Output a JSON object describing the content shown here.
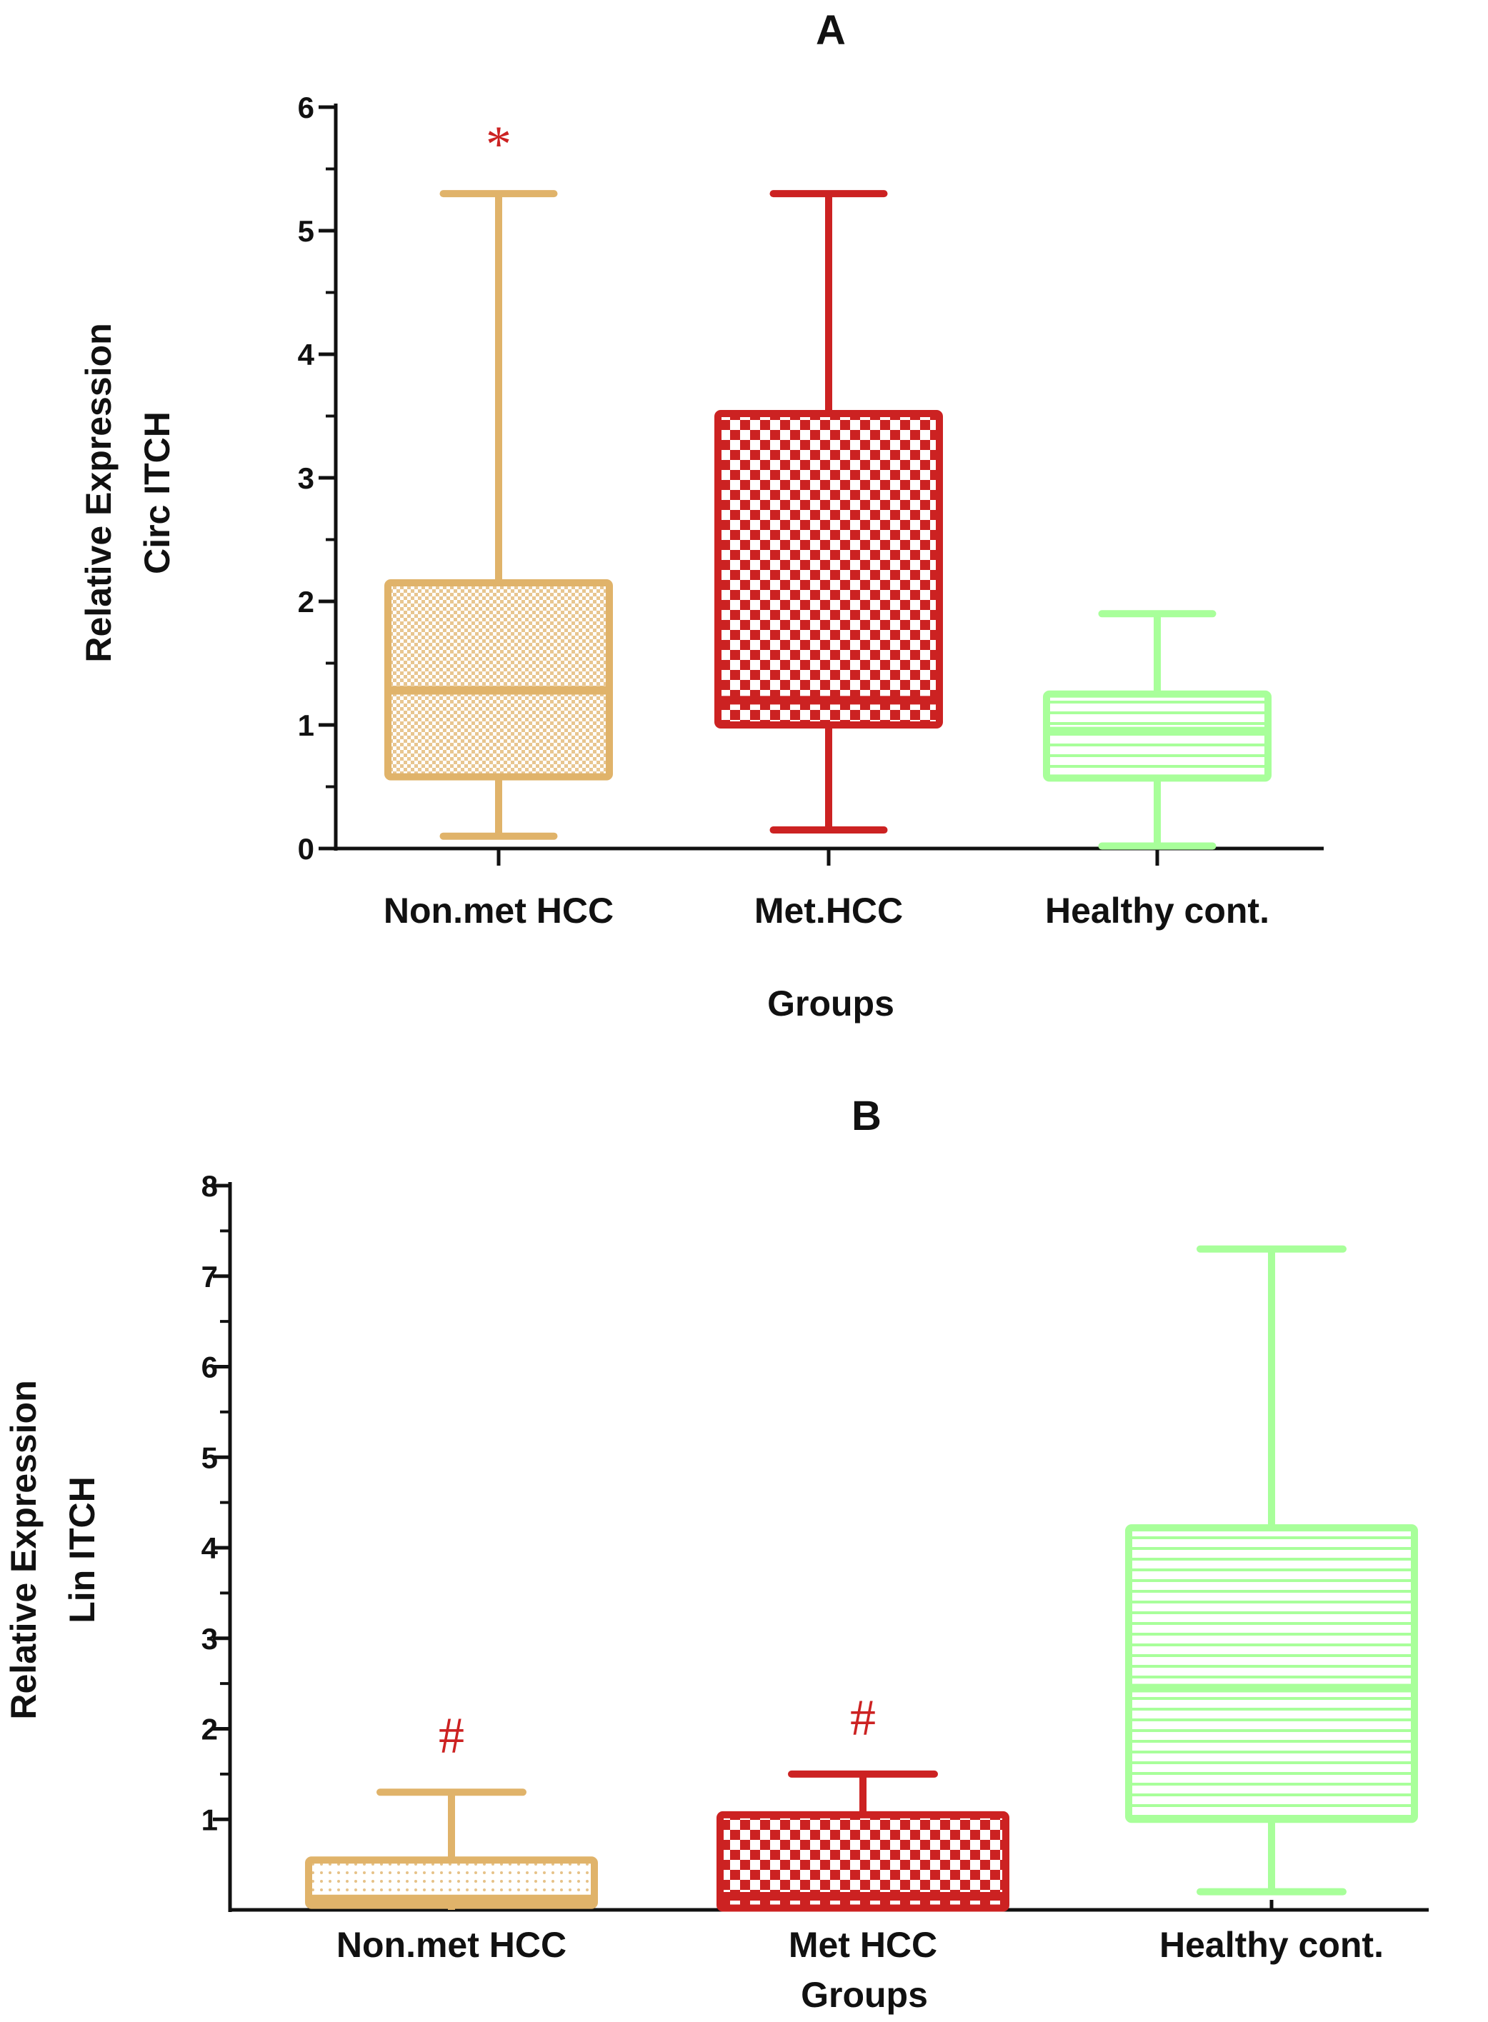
{
  "colors": {
    "non_met": "#E0B36A",
    "met": "#CC2222",
    "healthy": "#A8FF9A",
    "axis": "#111111",
    "significance": "#CC2222"
  },
  "chart_data": [
    {
      "type": "box",
      "panel": "A",
      "title": "A",
      "xlabel": "Groups",
      "ylabel_lines": [
        "Relative Expression",
        "Circ ITCH"
      ],
      "ylim": [
        0,
        6
      ],
      "yticks": [
        "0",
        "1",
        "2",
        "3",
        "4",
        "5",
        "6"
      ],
      "categories": [
        "Non.met HCC",
        "Met.HCC",
        "Healthy cont."
      ],
      "boxes": [
        {
          "category": "Non.met HCC",
          "color": "#E0B36A",
          "pattern": "fine-check",
          "min": 0.1,
          "q1": 0.58,
          "median": 1.28,
          "q3": 2.15,
          "max": 5.3,
          "annotation": "*"
        },
        {
          "category": "Met.HCC",
          "color": "#CC2222",
          "pattern": "checker",
          "min": 0.15,
          "q1": 1.0,
          "median": 1.2,
          "q3": 3.52,
          "max": 5.3,
          "annotation": ""
        },
        {
          "category": "Healthy cont.",
          "color": "#A8FF9A",
          "pattern": "horizontal-lines",
          "min": 0.02,
          "q1": 0.57,
          "median": 0.95,
          "q3": 1.25,
          "max": 1.9,
          "annotation": ""
        }
      ]
    },
    {
      "type": "box",
      "panel": "B",
      "title": "B",
      "xlabel": "Groups",
      "ylabel_lines": [
        "Relative Expression",
        "Lin ITCH"
      ],
      "ylim": [
        0,
        8
      ],
      "yticks": [
        "1",
        "2",
        "3",
        "4",
        "5",
        "6",
        "7",
        "8"
      ],
      "categories": [
        "Non.met HCC",
        "Met HCC",
        "Healthy cont."
      ],
      "boxes": [
        {
          "category": "Non.met HCC",
          "color": "#E0B36A",
          "pattern": "fine-dots",
          "min": 0.0,
          "q1": 0.05,
          "median": 0.12,
          "q3": 0.55,
          "max": 1.3,
          "annotation": "#"
        },
        {
          "category": "Met HCC",
          "color": "#CC2222",
          "pattern": "checker",
          "min": 0.0,
          "q1": 0.02,
          "median": 0.15,
          "q3": 1.05,
          "max": 1.5,
          "annotation": "#"
        },
        {
          "category": "Healthy cont.",
          "color": "#A8FF9A",
          "pattern": "horizontal-lines",
          "min": 0.2,
          "q1": 1.0,
          "median": 2.45,
          "q3": 4.22,
          "max": 7.3,
          "annotation": ""
        }
      ]
    }
  ]
}
